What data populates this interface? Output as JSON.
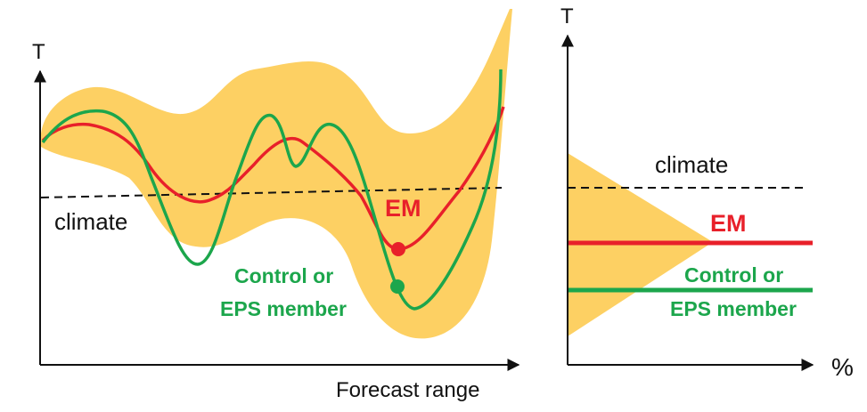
{
  "left_panel": {
    "y_axis_label": "T",
    "x_axis_label": "Forecast range",
    "climate_label": "climate",
    "em_label": "EM",
    "member_label_line1": "Control or",
    "member_label_line2": "EPS member"
  },
  "right_panel": {
    "y_axis_label": "T",
    "x_axis_label": "%",
    "climate_label": "climate",
    "em_label": "EM",
    "member_label_line1": "Control or",
    "member_label_line2": "EPS member"
  },
  "colors": {
    "spread": "#fdd063",
    "em": "#e8202a",
    "member": "#1ca64c",
    "climate": "#111111",
    "axis": "#111111"
  }
}
